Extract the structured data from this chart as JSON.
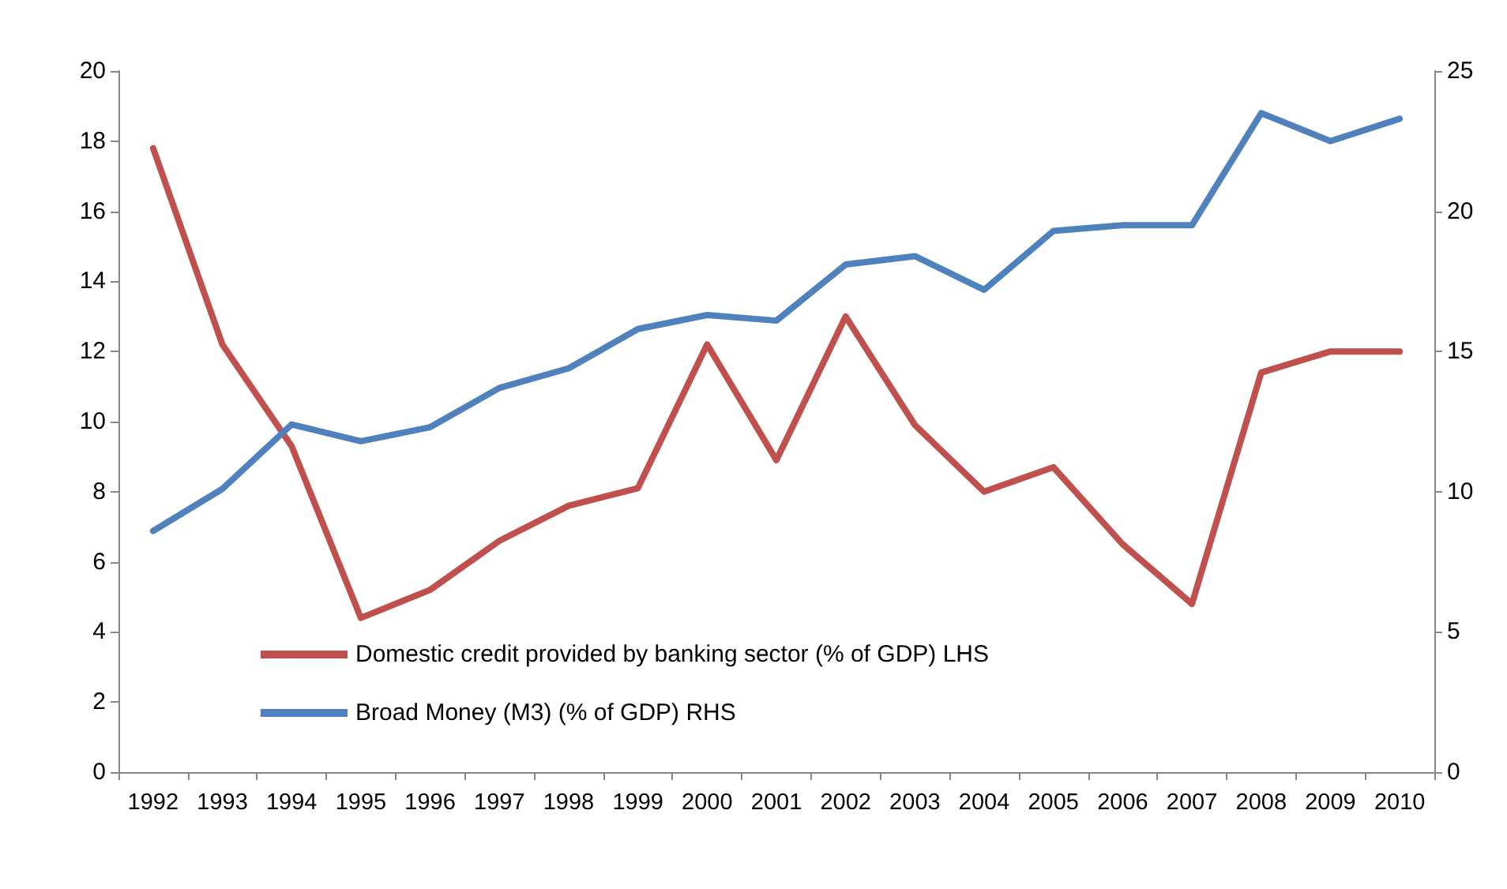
{
  "chart_data": {
    "type": "line",
    "categories": [
      "1992",
      "1993",
      "1994",
      "1995",
      "1996",
      "1997",
      "1998",
      "1999",
      "2000",
      "2001",
      "2002",
      "2003",
      "2004",
      "2005",
      "2006",
      "2007",
      "2008",
      "2009",
      "2010"
    ],
    "series": [
      {
        "name": "Domestic credit provided by banking sector (% of GDP) LHS",
        "color": "#c0504d",
        "values": [
          17.8,
          12.2,
          9.3,
          4.4,
          5.2,
          6.6,
          7.6,
          8.1,
          12.2,
          8.9,
          13.0,
          9.9,
          8.0,
          8.7,
          6.5,
          4.8,
          11.4,
          12.0,
          12.0
        ]
      },
      {
        "name": "Broad Money (M3) (% of GDP) RHS",
        "color": "#4f81bd",
        "axis": "y2",
        "values": [
          8.6,
          10.1,
          12.4,
          11.8,
          12.3,
          13.7,
          14.4,
          15.8,
          16.3,
          16.1,
          18.1,
          18.4,
          17.2,
          19.3,
          19.5,
          19.5,
          23.5,
          22.5,
          23.3
        ]
      }
    ],
    "ylim": [
      0,
      20
    ],
    "yticks": [
      0,
      2,
      4,
      6,
      8,
      10,
      12,
      14,
      16,
      18,
      20
    ],
    "y2lim": [
      0,
      25
    ],
    "y2ticks": [
      0,
      5,
      10,
      15,
      20,
      25
    ],
    "grid": false,
    "legend": "bottom left",
    "marker": "none",
    "line_style": "solid"
  }
}
